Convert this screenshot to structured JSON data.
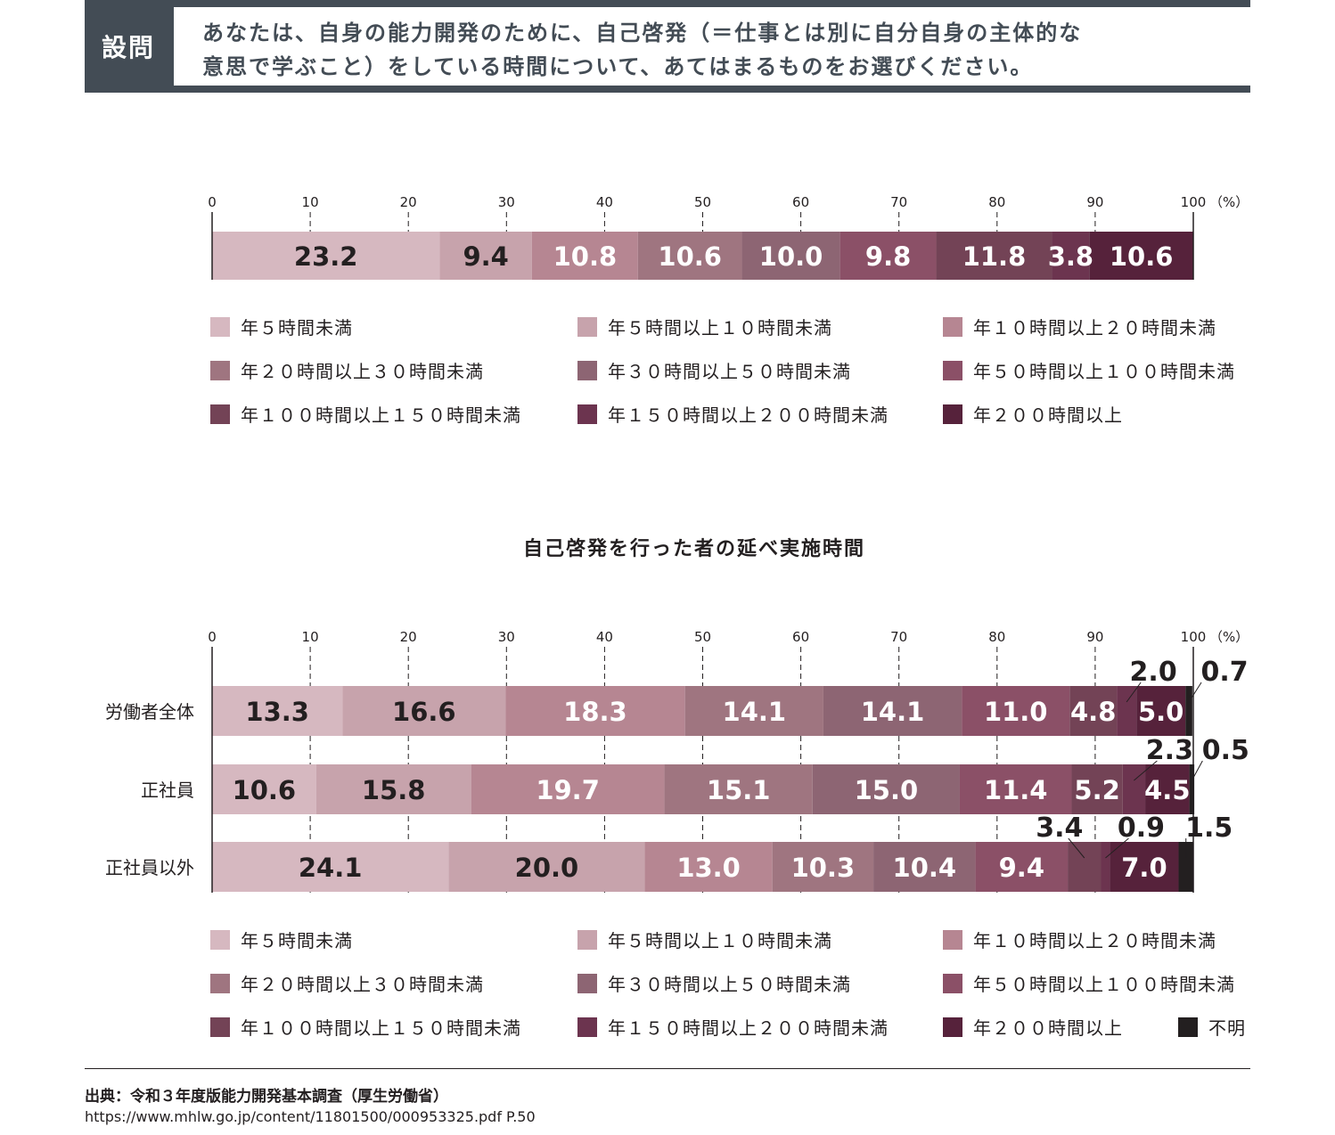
{
  "question": {
    "tag": "設問",
    "line1": "あなたは、自身の能力開発のために、自己啓発（＝仕事とは別に自分自身の主体的な",
    "line2": "意思で学ぶこと）をしている時間について、あてはまるものをお選びください。"
  },
  "chart_data": [
    {
      "type": "bar",
      "orientation": "horizontal-stacked-100",
      "title": "",
      "xlabel": "(%)",
      "xlim": [
        0,
        100
      ],
      "xticks": [
        "0",
        "10",
        "20",
        "30",
        "40",
        "50",
        "60",
        "70",
        "80",
        "90",
        "100"
      ],
      "unit_label": "（%）",
      "categories": [
        ""
      ],
      "series": [
        {
          "name": "年５時間未満",
          "values": [
            23.2
          ],
          "color": "#d6b8c0"
        },
        {
          "name": "年５時間以上１０時間未満",
          "values": [
            9.4
          ],
          "color": "#c7a3ac"
        },
        {
          "name": "年１０時間以上２０時間未満",
          "values": [
            10.8
          ],
          "color": "#b68692"
        },
        {
          "name": "年２０時間以上３０時間未満",
          "values": [
            10.6
          ],
          "color": "#9f7580"
        },
        {
          "name": "年３０時間以上５０時間未満",
          "values": [
            10.0
          ],
          "color": "#8d6573"
        },
        {
          "name": "年５０時間以上１００時間未満",
          "values": [
            9.8
          ],
          "color": "#8b5067"
        },
        {
          "name": "年１００時間以上１５０時間未満",
          "values": [
            11.8
          ],
          "color": "#734356"
        },
        {
          "name": "年１５０時間以上２００時間未満",
          "values": [
            3.8
          ],
          "color": "#6c344f"
        },
        {
          "name": "年２００時間以上",
          "values": [
            10.6
          ],
          "color": "#56223b"
        }
      ],
      "label_colors": [
        "#231f20",
        "#231f20",
        "#ffffff",
        "#ffffff",
        "#ffffff",
        "#ffffff",
        "#ffffff",
        "#ffffff",
        "#ffffff"
      ],
      "legend": "bottom",
      "grid": "dashed vertical"
    },
    {
      "type": "bar",
      "orientation": "horizontal-stacked-100",
      "title": "自己啓発を行った者の延べ実施時間",
      "xlabel": "(%)",
      "xlim": [
        0,
        100
      ],
      "xticks": [
        "0",
        "10",
        "20",
        "30",
        "40",
        "50",
        "60",
        "70",
        "80",
        "90",
        "100"
      ],
      "unit_label": "（%）",
      "categories": [
        "労働者全体",
        "正社員",
        "正社員以外"
      ],
      "series": [
        {
          "name": "年５時間未満",
          "values": [
            13.3,
            10.6,
            24.1
          ],
          "color": "#d6b8c0"
        },
        {
          "name": "年５時間以上１０時間未満",
          "values": [
            16.6,
            15.8,
            20.0
          ],
          "color": "#c7a3ac"
        },
        {
          "name": "年１０時間以上２０時間未満",
          "values": [
            18.3,
            19.7,
            13.0
          ],
          "color": "#b68692"
        },
        {
          "name": "年２０時間以上３０時間未満",
          "values": [
            14.1,
            15.1,
            10.3
          ],
          "color": "#9f7580"
        },
        {
          "name": "年３０時間以上５０時間未満",
          "values": [
            14.1,
            15.0,
            10.4
          ],
          "color": "#8d6573"
        },
        {
          "name": "年５０時間以上１００時間未満",
          "values": [
            11.0,
            11.4,
            9.4
          ],
          "color": "#8b5067"
        },
        {
          "name": "年１００時間以上１５０時間未満",
          "values": [
            4.8,
            5.2,
            3.4
          ],
          "color": "#734356"
        },
        {
          "name": "年１５０時間以上２００時間未満",
          "values": [
            2.0,
            2.3,
            0.9
          ],
          "color": "#6c344f"
        },
        {
          "name": "年２００時間以上",
          "values": [
            5.0,
            4.5,
            7.0
          ],
          "color": "#56223b"
        },
        {
          "name": "不明",
          "values": [
            0.7,
            0.5,
            1.5
          ],
          "color": "#231f20"
        }
      ],
      "label_colors": [
        "#231f20",
        "#231f20",
        "#ffffff",
        "#ffffff",
        "#ffffff",
        "#ffffff",
        "#ffffff",
        "#ffffff",
        "#ffffff",
        "#ffffff"
      ],
      "legend": "bottom",
      "grid": "dashed vertical"
    }
  ],
  "legend1": [
    "年５時間未満",
    "年５時間以上１０時間未満",
    "年１０時間以上２０時間未満",
    "年２０時間以上３０時間未満",
    "年３０時間以上５０時間未満",
    "年５０時間以上１００時間未満",
    "年１００時間以上１５０時間未満",
    "年１５０時間以上２００時間未満",
    "年２００時間以上"
  ],
  "legend2": [
    "年５時間未満",
    "年５時間以上１０時間未満",
    "年１０時間以上２０時間未満",
    "年２０時間以上３０時間未満",
    "年３０時間以上５０時間未満",
    "年５０時間以上１００時間未満",
    "年１００時間以上１５０時間未満",
    "年１５０時間以上２００時間未満",
    "年２００時間以上",
    "不明"
  ],
  "source": {
    "title": "出典：令和３年度版能力開発基本調査（厚生労働省）",
    "url": "https://www.mhlw.go.jp/content/11801500/000953325.pdf P.50"
  }
}
